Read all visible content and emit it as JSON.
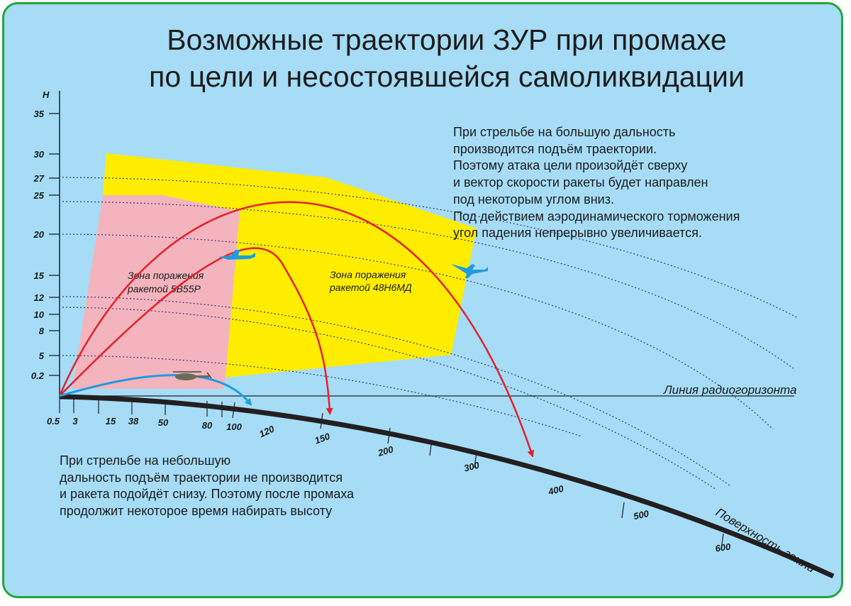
{
  "title": {
    "line1": "Возможные траектории ЗУР при промахе",
    "line2": "по цели и несостоявшейся самоликвидации"
  },
  "note_top": [
    "При стрельбе на большую дальность",
    "производится подъём траектории.",
    "Поэтому атака цели произойдёт сверху",
    "и вектор скорости ракеты будет направлен",
    "под некоторым углом вниз.",
    "Под действием аэродинамического торможения",
    "угол падения непрерывно увеличивается."
  ],
  "note_bottom": [
    "При стрельбе на небольшую",
    "дальность подъём траектории не производится",
    "и ракета подойдёт снизу. Поэтому после промаха",
    "продолжит некоторое время набирать высоту"
  ],
  "axis": {
    "h_label": "H",
    "h_ticks": [
      "35",
      "30",
      "27",
      "25",
      "20",
      "15",
      "12",
      "10",
      "8",
      "5",
      "0.2"
    ],
    "range_ticks": [
      "0.5",
      "3",
      "15",
      "38",
      "50",
      "80",
      "100",
      "120",
      "150",
      "200",
      "300",
      "400",
      "500",
      "600"
    ]
  },
  "zones": {
    "zone_5v55r": [
      "Зона поражения",
      "ракетой 5В55Р"
    ],
    "zone_48n6md": [
      "Зона поражения",
      "ракетой 48Н6МД"
    ]
  },
  "labels": {
    "radio_horizon": "Линия радиогоризонта",
    "earth_surface": "Поверхность земли"
  },
  "icons": {
    "aircraft": "jet-aircraft-icon",
    "helicopter": "helicopter-icon"
  },
  "colors": {
    "frame_border": "#22a63a",
    "background": "#a6dcf6",
    "zone_large": "#ffed00",
    "zone_small": "#f4b4bd",
    "trajectory_red": "#e3202a",
    "trajectory_blue": "#1f9be2",
    "ground": "#231f20"
  }
}
